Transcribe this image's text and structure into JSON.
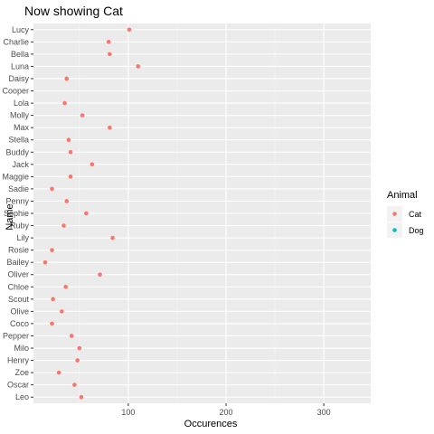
{
  "chart_data": {
    "type": "scatter",
    "title": "Now showing Cat",
    "xlabel": "Occurences",
    "ylabel": "Name",
    "xlim": [
      3,
      348
    ],
    "xticks": [
      100,
      200,
      300
    ],
    "xtick_labels": [
      "100",
      "200",
      "300"
    ],
    "categories": [
      "Lucy",
      "Charlie",
      "Bella",
      "Luna",
      "Daisy",
      "Cooper",
      "Lola",
      "Molly",
      "Max",
      "Stella",
      "Buddy",
      "Jack",
      "Maggie",
      "Sadie",
      "Penny",
      "Sophie",
      "Ruby",
      "Lily",
      "Rosie",
      "Bailey",
      "Oliver",
      "Chloe",
      "Scout",
      "Olive",
      "Coco",
      "Pepper",
      "Milo",
      "Henry",
      "Zoe",
      "Oscar",
      "Leo"
    ],
    "series": [
      {
        "name": "Cat",
        "color": "#F8766D",
        "values": [
          101,
          80,
          81,
          110,
          37,
          null,
          35,
          53,
          81,
          39,
          41,
          63,
          41,
          22,
          37,
          57,
          34,
          84,
          22,
          15,
          71,
          36,
          23,
          32,
          22,
          42,
          50,
          48,
          29,
          45,
          52
        ]
      }
    ],
    "legend": {
      "title": "Animal",
      "position": "right",
      "entries": [
        {
          "label": "Cat",
          "color": "#F8766D"
        },
        {
          "label": "Dog",
          "color": "#00BFC4"
        }
      ]
    },
    "grid": true,
    "panel_background": "#EBEBEB"
  }
}
